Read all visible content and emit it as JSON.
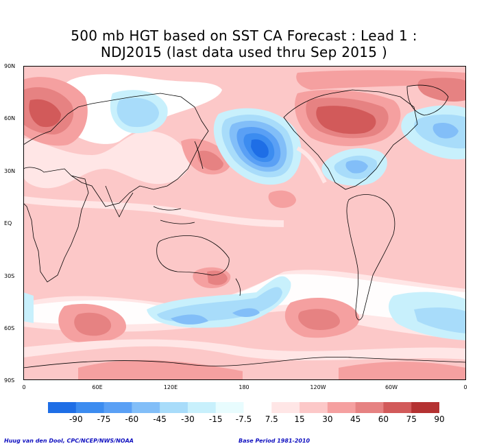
{
  "title": {
    "line1": "500 mb HGT based on SST CA Forecast : Lead 1 :",
    "line2": "NDJ2015 (last data used thru Sep 2015 )"
  },
  "lat_labels": [
    "90N",
    "60N",
    "30N",
    "EQ",
    "30S",
    "60S",
    "90S"
  ],
  "lon_labels": [
    "0",
    "60E",
    "120E",
    "180",
    "120W",
    "60W",
    "0"
  ],
  "legend": {
    "labels": [
      "-90",
      "-75",
      "-60",
      "-45",
      "-30",
      "-15",
      "-7.5",
      "7.5",
      "15",
      "30",
      "45",
      "60",
      "75",
      "90"
    ],
    "colors": [
      "#1e6ee6",
      "#3c8cf0",
      "#5aa0f5",
      "#82bef8",
      "#a8dcfa",
      "#c8f0fc",
      "#e8fcfe",
      "#ffffff",
      "#ffe6e6",
      "#fcc8c8",
      "#f5a0a0",
      "#e68282",
      "#d25a5a",
      "#b43232"
    ]
  },
  "footer": {
    "credit": "Huug van den Dool, CPC/NCEP/NWS/NOAA",
    "base_period": "Base Period 1981-2010"
  }
}
